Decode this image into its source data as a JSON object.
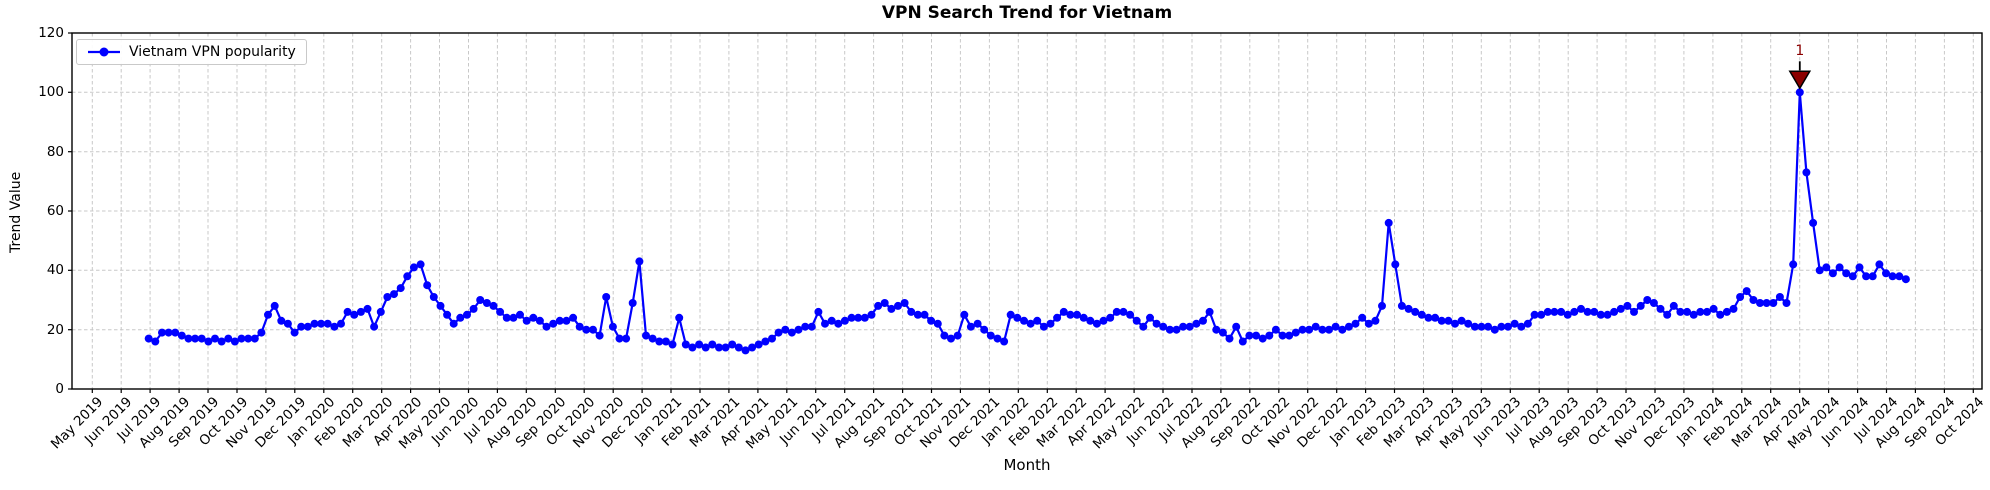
{
  "figure": {
    "background": "#ffffff",
    "grid_color": "#c8c8c8",
    "axis_color": "#000000"
  },
  "chart_data": {
    "type": "line",
    "title": "VPN Search Trend for Vietnam",
    "xlabel": "Month",
    "ylabel": "Trend Value",
    "ylim": [
      0,
      120
    ],
    "y_ticks": [
      0,
      20,
      40,
      60,
      80,
      100,
      120
    ],
    "grid": true,
    "legend_position": "upper left",
    "x_tick_labels": [
      "May 2019",
      "Jun 2019",
      "Jul 2019",
      "Aug 2019",
      "Sep 2019",
      "Oct 2019",
      "Nov 2019",
      "Dec 2019",
      "Jan 2020",
      "Feb 2020",
      "Mar 2020",
      "Apr 2020",
      "May 2020",
      "Jun 2020",
      "Jul 2020",
      "Aug 2020",
      "Sep 2020",
      "Oct 2020",
      "Nov 2020",
      "Dec 2020",
      "Jan 2021",
      "Feb 2021",
      "Mar 2021",
      "Apr 2021",
      "May 2021",
      "Jun 2021",
      "Jul 2021",
      "Aug 2021",
      "Sep 2021",
      "Oct 2021",
      "Nov 2021",
      "Dec 2021",
      "Jan 2022",
      "Feb 2022",
      "Mar 2022",
      "Apr 2022",
      "May 2022",
      "Jun 2022",
      "Jul 2022",
      "Aug 2022",
      "Sep 2022",
      "Oct 2022",
      "Nov 2022",
      "Dec 2022",
      "Jan 2023",
      "Feb 2023",
      "Mar 2023",
      "Apr 2023",
      "May 2023",
      "Jun 2023",
      "Jul 2023",
      "Aug 2023",
      "Sep 2023",
      "Oct 2023",
      "Nov 2023",
      "Dec 2023",
      "Jan 2024",
      "Feb 2024",
      "Mar 2024",
      "Apr 2024",
      "May 2024",
      "Jun 2024",
      "Jul 2024",
      "Aug 2024",
      "Sep 2024",
      "Oct 2024"
    ],
    "series": [
      {
        "name": "Vietnam VPN popularity",
        "color": "#0000ff",
        "marker": "circle",
        "frequency": "weekly",
        "x_start_month": 1.95,
        "x_end_month": 62.67,
        "values": [
          17,
          16,
          19,
          19,
          19,
          18,
          17,
          17,
          17,
          16,
          17,
          16,
          17,
          16,
          17,
          17,
          17,
          19,
          25,
          28,
          23,
          22,
          19,
          21,
          21,
          22,
          22,
          22,
          21,
          22,
          26,
          25,
          26,
          27,
          21,
          26,
          31,
          32,
          34,
          38,
          41,
          42,
          35,
          31,
          28,
          25,
          22,
          24,
          25,
          27,
          30,
          29,
          28,
          26,
          24,
          24,
          25,
          23,
          24,
          23,
          21,
          22,
          23,
          23,
          24,
          21,
          20,
          20,
          18,
          31,
          21,
          17,
          17,
          29,
          43,
          18,
          17,
          16,
          16,
          15,
          24,
          15,
          14,
          15,
          14,
          15,
          14,
          14,
          15,
          14,
          13,
          14,
          15,
          16,
          17,
          19,
          20,
          19,
          20,
          21,
          21,
          26,
          22,
          23,
          22,
          23,
          24,
          24,
          24,
          25,
          28,
          29,
          27,
          28,
          29,
          26,
          25,
          25,
          23,
          22,
          18,
          17,
          18,
          25,
          21,
          22,
          20,
          18,
          17,
          16,
          25,
          24,
          23,
          22,
          23,
          21,
          22,
          24,
          26,
          25,
          25,
          24,
          23,
          22,
          23,
          24,
          26,
          26,
          25,
          23,
          21,
          24,
          22,
          21,
          20,
          20,
          21,
          21,
          22,
          23,
          26,
          20,
          19,
          17,
          21,
          16,
          18,
          18,
          17,
          18,
          20,
          18,
          18,
          19,
          20,
          20,
          21,
          20,
          20,
          21,
          20,
          21,
          22,
          24,
          22,
          23,
          28,
          56,
          42,
          28,
          27,
          26,
          25,
          24,
          24,
          23,
          23,
          22,
          23,
          22,
          21,
          21,
          21,
          20,
          21,
          21,
          22,
          21,
          22,
          25,
          25,
          26,
          26,
          26,
          25,
          26,
          27,
          26,
          26,
          25,
          25,
          26,
          27,
          28,
          26,
          28,
          30,
          29,
          27,
          25,
          28,
          26,
          26,
          25,
          26,
          26,
          27,
          25,
          26,
          27,
          31,
          33,
          30,
          29,
          29,
          29,
          31,
          29,
          42,
          100,
          73,
          56,
          40,
          41,
          39,
          41,
          39,
          38,
          41,
          38,
          38,
          42,
          39,
          38,
          38,
          37
        ]
      }
    ],
    "annotation": {
      "label": "1",
      "text_color": "#8b0000",
      "marker": "triangle-down",
      "marker_fill": "#8b0000",
      "marker_edge": "#000000",
      "anchored_to": "series-max",
      "value": 100,
      "x_label": "Apr 2024"
    }
  }
}
